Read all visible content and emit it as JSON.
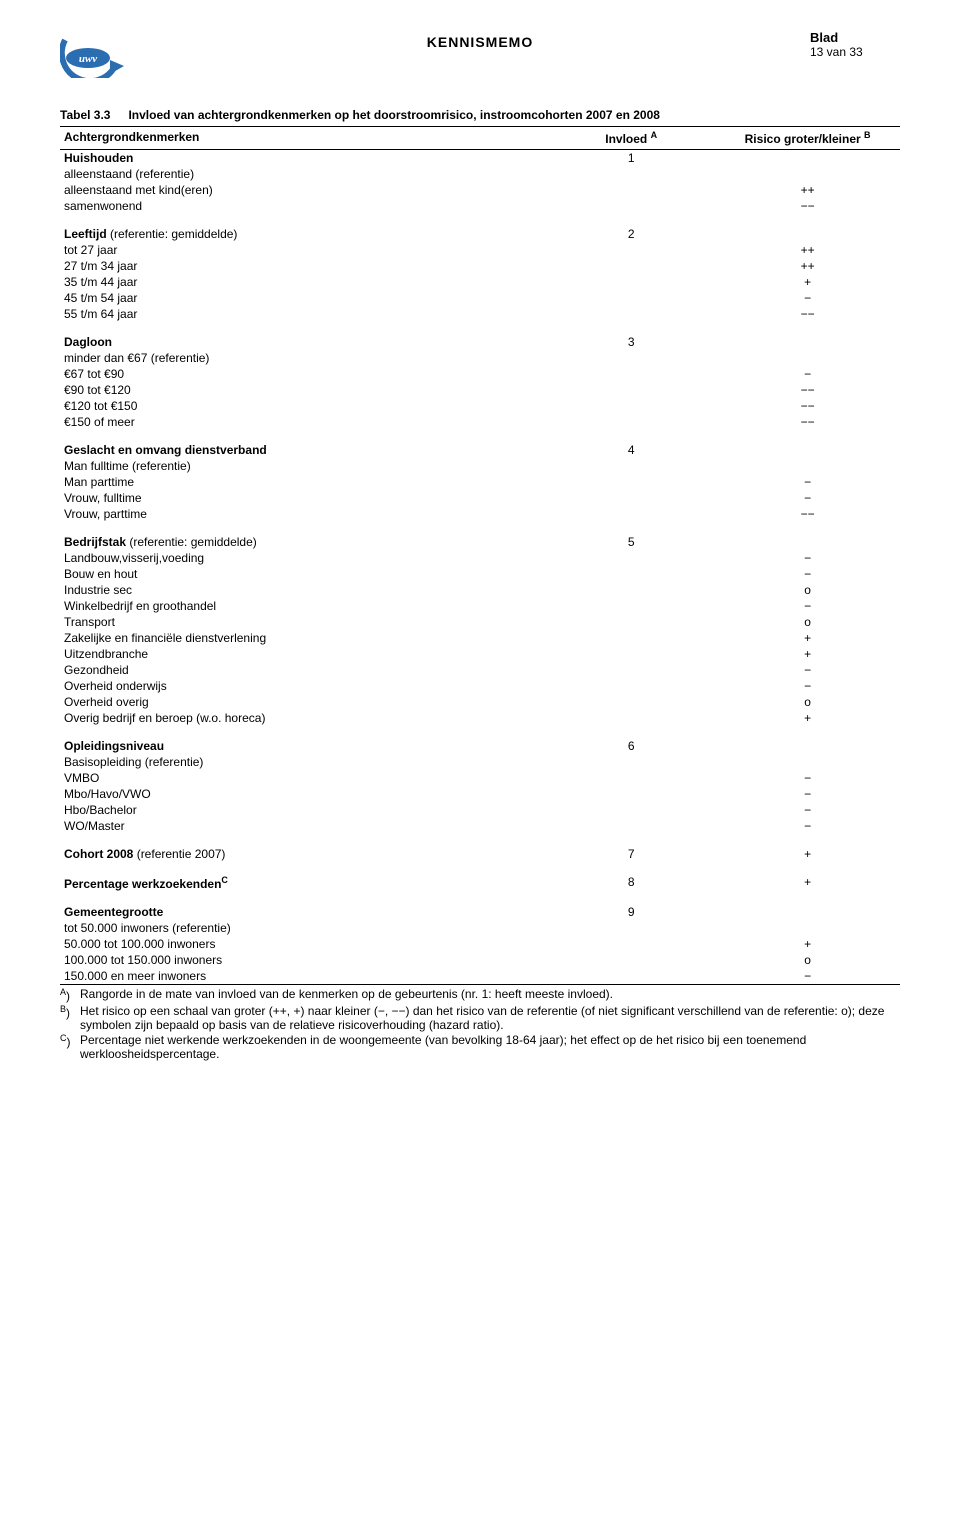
{
  "header": {
    "title": "KENNISMEMO",
    "blad_label": "Blad",
    "blad_value": "13 van 33",
    "logo_text": "uwv",
    "logo_bg": "#ffffff",
    "logo_blue": "#2a6db0"
  },
  "caption": {
    "number": "Tabel 3.3",
    "text": "Invloed van achtergrondkenmerken op het doorstroomrisico, instroomcohorten 2007 en 2008"
  },
  "columns": {
    "c1": "Achtergrondkenmerken",
    "c2": "Invloed",
    "c2_sup": "A",
    "c3": "Risico groter/kleiner",
    "c3_sup": "B"
  },
  "groups": [
    {
      "head": "Huishouden",
      "influence": "1",
      "rows": [
        {
          "label": "alleenstaand (referentie)",
          "risk": ""
        },
        {
          "label": "alleenstaand met kind(eren)",
          "risk": "++"
        },
        {
          "label": "samenwonend",
          "risk": "−−"
        }
      ]
    },
    {
      "head": "Leeftijd",
      "head_extra": " (referentie: gemiddelde)",
      "influence": "2",
      "rows": [
        {
          "label": "tot 27 jaar",
          "risk": "++"
        },
        {
          "label": "27 t/m 34 jaar",
          "risk": "++"
        },
        {
          "label": "35 t/m 44 jaar",
          "risk": "+"
        },
        {
          "label": "45 t/m 54 jaar",
          "risk": "−"
        },
        {
          "label": "55 t/m 64 jaar",
          "risk": "−−"
        }
      ]
    },
    {
      "head": "Dagloon",
      "influence": "3",
      "rows": [
        {
          "label": "minder dan €67 (referentie)",
          "risk": ""
        },
        {
          "label": "€67 tot €90",
          "risk": "−"
        },
        {
          "label": "€90 tot €120",
          "risk": "−−"
        },
        {
          "label": "€120 tot €150",
          "risk": "−−"
        },
        {
          "label": "€150 of meer",
          "risk": "−−"
        }
      ]
    },
    {
      "head": "Geslacht en omvang dienstverband",
      "influence": "4",
      "rows": [
        {
          "label": "Man fulltime (referentie)",
          "risk": ""
        },
        {
          "label": "Man parttime",
          "risk": "−"
        },
        {
          "label": "Vrouw, fulltime",
          "risk": "−"
        },
        {
          "label": "Vrouw, parttime",
          "risk": "−−"
        }
      ]
    },
    {
      "head": "Bedrijfstak",
      "head_extra": " (referentie: gemiddelde)",
      "influence": "5",
      "rows": [
        {
          "label": "Landbouw,visserij,voeding",
          "risk": "−"
        },
        {
          "label": "Bouw en hout",
          "risk": "−"
        },
        {
          "label": "Industrie sec",
          "risk": "o"
        },
        {
          "label": "Winkelbedrijf en groothandel",
          "risk": "−"
        },
        {
          "label": "Transport",
          "risk": "o"
        },
        {
          "label": "Zakelijke en financiële dienstverlening",
          "risk": "+"
        },
        {
          "label": "Uitzendbranche",
          "risk": "+"
        },
        {
          "label": "Gezondheid",
          "risk": "−"
        },
        {
          "label": "Overheid onderwijs",
          "risk": "−"
        },
        {
          "label": "Overheid overig",
          "risk": "o"
        },
        {
          "label": "Overig bedrijf en beroep (w.o. horeca)",
          "risk": "+"
        }
      ]
    },
    {
      "head": "Opleidingsniveau",
      "influence": "6",
      "rows": [
        {
          "label": "Basisopleiding (referentie)",
          "risk": ""
        },
        {
          "label": "VMBO",
          "risk": "−"
        },
        {
          "label": "Mbo/Havo/VWO",
          "risk": "−"
        },
        {
          "label": "Hbo/Bachelor",
          "risk": "−"
        },
        {
          "label": "WO/Master",
          "risk": "−"
        }
      ]
    },
    {
      "head": "Cohort 2008",
      "head_extra": "  (referentie 2007)",
      "influence": "7",
      "head_risk": "+",
      "rows": []
    },
    {
      "head": "Percentage werkzoekenden",
      "head_sup": "C",
      "influence": "8",
      "head_risk": "+",
      "rows": []
    },
    {
      "head": "Gemeentegrootte",
      "influence": "9",
      "rows": [
        {
          "label": "tot 50.000 inwoners (referentie)",
          "risk": ""
        },
        {
          "label": "50.000 tot 100.000 inwoners",
          "risk": "+"
        },
        {
          "label": "100.000 tot 150.000 inwoners",
          "risk": "o"
        },
        {
          "label": "150.000 en meer inwoners",
          "risk": "−",
          "last": true
        }
      ]
    }
  ],
  "footnotes": [
    {
      "mark": "A",
      "text": "Rangorde in de mate van invloed van de kenmerken op de gebeurtenis (nr. 1: heeft meeste invloed)."
    },
    {
      "mark": "B",
      "text": "Het risico op een schaal van groter (++, +) naar kleiner (−, −−) dan het risico van de referentie (of niet significant verschillend van de referentie: o); deze symbolen zijn bepaald op basis van de relatieve risicoverhouding (hazard ratio)."
    },
    {
      "mark": "C",
      "text": "Percentage niet werkende werkzoekenden in de woongemeente (van bevolking 18-64 jaar); het effect op de het risico bij een toenemend werkloosheidspercentage."
    }
  ]
}
